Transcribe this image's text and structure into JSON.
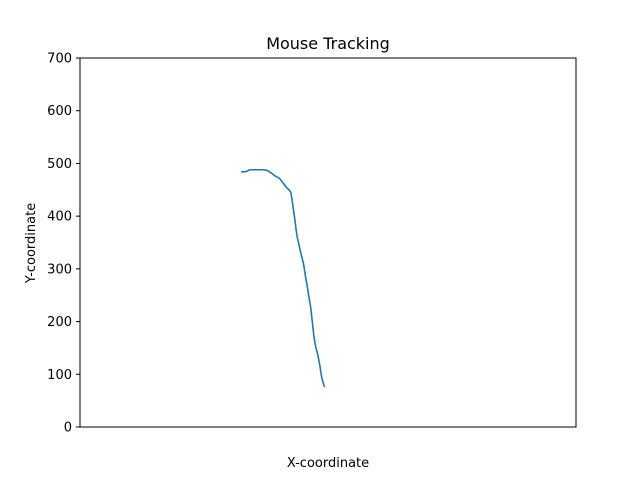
{
  "chart_data": {
    "type": "line",
    "title": "Mouse Tracking",
    "xlabel": "X-coordinate",
    "ylabel": "Y-coordinate",
    "ylim": [
      0,
      700
    ],
    "yticks": [
      0,
      100,
      200,
      300,
      400,
      500,
      600,
      700
    ],
    "xticks_shown": false,
    "grid": false,
    "series": [
      {
        "color": "#1f77b4",
        "x": [
          250,
          253,
          258,
          262,
          266,
          270,
          274,
          278,
          282,
          286,
          289,
          292,
          294,
          296,
          297,
          298,
          299,
          300,
          301,
          302,
          303,
          304,
          305,
          306,
          307,
          308,
          309,
          310,
          311,
          312,
          313,
          314,
          315,
          316,
          317,
          318,
          319,
          320,
          321,
          322,
          323,
          324,
          325,
          326,
          327,
          328,
          329
        ],
        "y": [
          484,
          484,
          488,
          488,
          488,
          488,
          487,
          482,
          476,
          472,
          464,
          456,
          452,
          448,
          444,
          432,
          418,
          404,
          390,
          374,
          360,
          352,
          343,
          334,
          326,
          318,
          310,
          298,
          285,
          274,
          262,
          250,
          238,
          226,
          208,
          190,
          172,
          160,
          150,
          143,
          134,
          124,
          113,
          99,
          90,
          83,
          77
        ]
      }
    ]
  }
}
